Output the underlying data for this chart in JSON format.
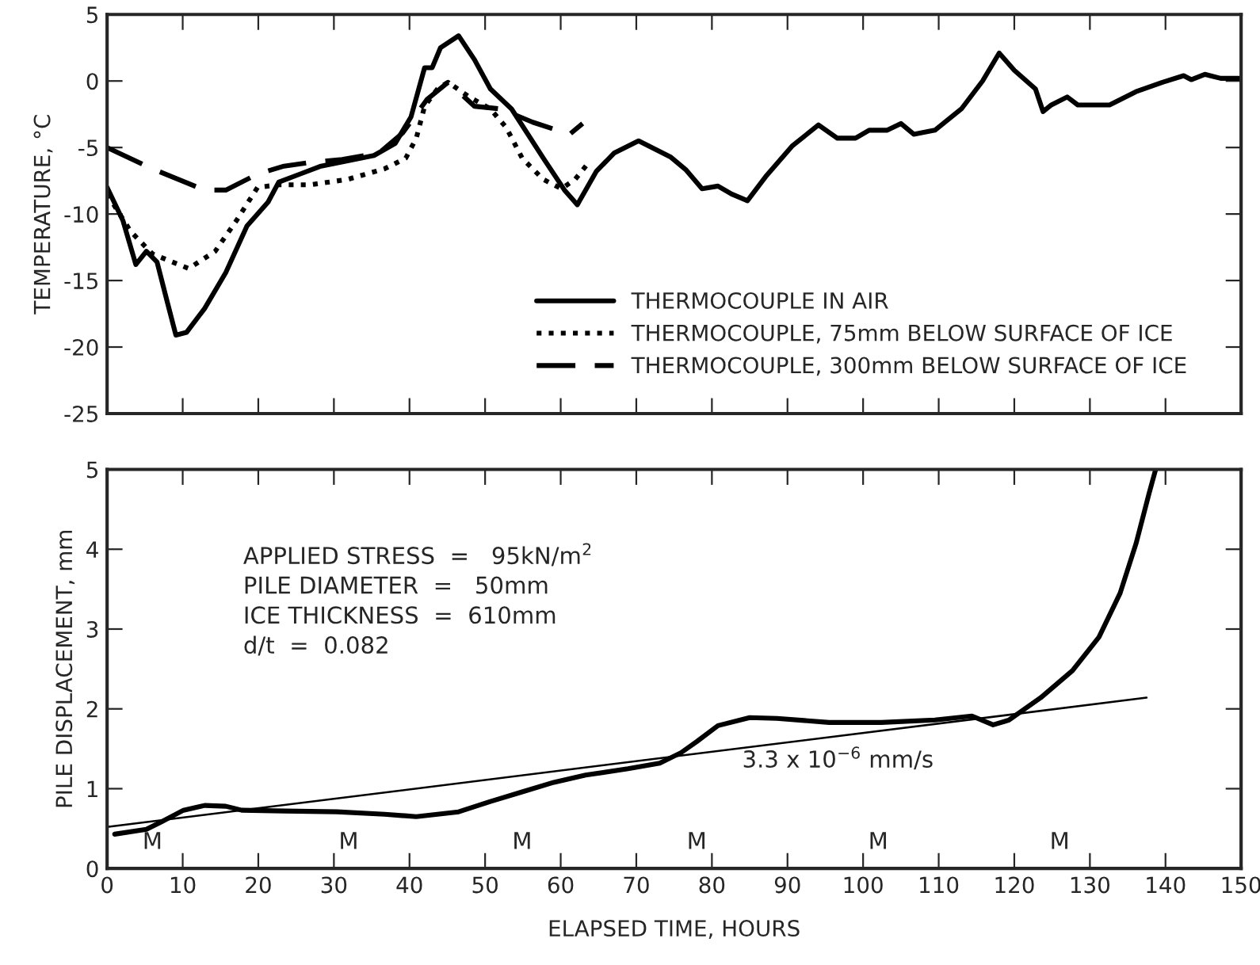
{
  "chart_data": [
    {
      "type": "line",
      "ylabel": "TEMPERATURE, °C",
      "xlim": [
        0,
        150
      ],
      "xticks": [
        0,
        10,
        20,
        30,
        40,
        50,
        60,
        70,
        80,
        90,
        100,
        110,
        120,
        130,
        140,
        150
      ],
      "ylim": [
        -25,
        5
      ],
      "yticks": [
        -25,
        -20,
        -15,
        -10,
        -5,
        0,
        5
      ],
      "tick_labels": "y",
      "grid": false,
      "legend": "bottom right",
      "series": [
        {
          "name": "THERMOCOUPLE IN AIR",
          "color": "#000000",
          "line_style": "solid",
          "x": [
            0,
            2.1,
            3.8,
            5.2,
            6.6,
            8.0,
            9.1,
            10.5,
            12.9,
            15.7,
            18.5,
            21.3,
            22.7,
            25.5,
            28.3,
            31.8,
            35.3,
            38.1,
            40.2,
            42.0,
            43.0,
            44.1,
            46.5,
            48.6,
            50.7,
            53.5,
            57.7,
            60.5,
            62.2,
            64.7,
            67.1,
            70.3,
            74.5,
            76.6,
            78.7,
            80.8,
            82.6,
            84.7,
            87.1,
            90.6,
            94.1,
            96.6,
            99.0,
            100.8,
            103.2,
            105.0,
            106.7,
            109.5,
            113.0,
            115.8,
            118.0,
            120.0,
            122.8,
            123.8,
            124.9,
            127.0,
            128.4,
            132.6,
            136.1,
            139.6,
            142.4,
            143.4,
            145.2,
            147.3,
            149.7
          ],
          "values": [
            -8.0,
            -10.5,
            -13.8,
            -12.8,
            -13.6,
            -16.7,
            -19.1,
            -18.9,
            -17.1,
            -14.4,
            -10.9,
            -9.1,
            -7.6,
            -7.0,
            -6.4,
            -6.0,
            -5.6,
            -4.7,
            -2.7,
            1.0,
            1.0,
            2.5,
            3.4,
            1.6,
            -0.6,
            -2.1,
            -5.8,
            -8.2,
            -9.3,
            -6.8,
            -5.4,
            -4.5,
            -5.7,
            -6.7,
            -8.1,
            -7.9,
            -8.5,
            -9.0,
            -7.2,
            -4.9,
            -3.3,
            -4.3,
            -4.3,
            -3.7,
            -3.7,
            -3.2,
            -4.0,
            -3.7,
            -2.1,
            0,
            2.1,
            0.8,
            -0.6,
            -2.3,
            -1.8,
            -1.2,
            -1.8,
            -1.8,
            -0.8,
            -0.1,
            0.4,
            0.1,
            0.5,
            0.2,
            0.2
          ]
        },
        {
          "name": "THERMOCOUPLE, 75mm BELOW SURFACE OF ICE",
          "color": "#000000",
          "line_style": "dotted",
          "x": [
            0,
            3.1,
            6.0,
            10.8,
            14.3,
            17.1,
            19.9,
            22.7,
            26.9,
            31.8,
            36.7,
            39.5,
            40.9,
            42.0,
            43.7,
            45.1,
            47.9,
            50.7,
            52.8,
            54.9,
            57.7,
            60.1,
            61.9,
            63.6
          ],
          "values": [
            -8.5,
            -11.3,
            -13.0,
            -14.1,
            -12.8,
            -10.5,
            -8.0,
            -7.8,
            -7.8,
            -7.4,
            -6.6,
            -5.8,
            -4.3,
            -1.9,
            -0.6,
            -0.1,
            -1.2,
            -2.1,
            -3.5,
            -5.8,
            -7.4,
            -8.1,
            -7.4,
            -6.2
          ]
        },
        {
          "name": "THERMOCOUPLE, 300mm BELOW SURFACE OF ICE",
          "color": "#000000",
          "line_style": "dashed",
          "x": [
            0,
            6.0,
            12.9,
            15.7,
            19.9,
            23.4,
            27.2,
            31.1,
            36.0,
            39.1,
            42.3,
            45.1,
            48.6,
            52.1,
            56.3,
            61.2,
            62.9
          ],
          "values": [
            -5.0,
            -6.6,
            -8.2,
            -8.2,
            -7.0,
            -6.4,
            -6.1,
            -5.9,
            -5.4,
            -3.9,
            -1.4,
            -0.1,
            -1.9,
            -2.1,
            -3.1,
            -4.0,
            -3.2
          ]
        }
      ]
    },
    {
      "type": "line",
      "xlabel": "ELAPSED TIME, HOURS",
      "ylabel": "PILE DISPLACEMENT, mm",
      "xlim": [
        0,
        150
      ],
      "xticks": [
        0,
        10,
        20,
        30,
        40,
        50,
        60,
        70,
        80,
        90,
        100,
        110,
        120,
        130,
        140,
        150
      ],
      "ylim": [
        0,
        5
      ],
      "yticks": [
        0,
        1,
        2,
        3,
        4,
        5
      ],
      "grid": false,
      "legend": false,
      "series": [
        {
          "color": "#000000",
          "line_style": "solid",
          "x": [
            1,
            5.2,
            7.3,
            10.1,
            12.9,
            15.7,
            17.8,
            23.4,
            30.4,
            36.7,
            40.9,
            46.5,
            50.7,
            54.9,
            59.1,
            63.3,
            68.9,
            73.1,
            75.9,
            78.0,
            80.8,
            85.0,
            88.6,
            95.5,
            102.4,
            109.5,
            114.4,
            117.2,
            119.3,
            123.5,
            127.7,
            131.2,
            134.0,
            136.1,
            137.8,
            138.7
          ],
          "values": [
            0.43,
            0.49,
            0.59,
            0.73,
            0.79,
            0.78,
            0.73,
            0.72,
            0.71,
            0.68,
            0.65,
            0.71,
            0.84,
            0.96,
            1.08,
            1.17,
            1.25,
            1.32,
            1.45,
            1.59,
            1.79,
            1.89,
            1.88,
            1.83,
            1.83,
            1.86,
            1.91,
            1.8,
            1.86,
            2.14,
            2.48,
            2.9,
            3.45,
            4.07,
            4.69,
            5.0
          ]
        },
        {
          "color": "#000000",
          "line_style": "solid",
          "x": [
            0,
            137.5
          ],
          "values": [
            0.52,
            2.14
          ]
        }
      ],
      "annotations": [
        "APPLIED STRESS  =   95kN/m$^{2}$",
        "PILE DIAMETER  =   50mm",
        "ICE THICKNESS  =  610mm",
        "d/t  =  0.082",
        "3.3 x 10$^{−6}$ mm/s",
        "M",
        "M",
        "M",
        "M",
        "M",
        "M"
      ]
    }
  ]
}
